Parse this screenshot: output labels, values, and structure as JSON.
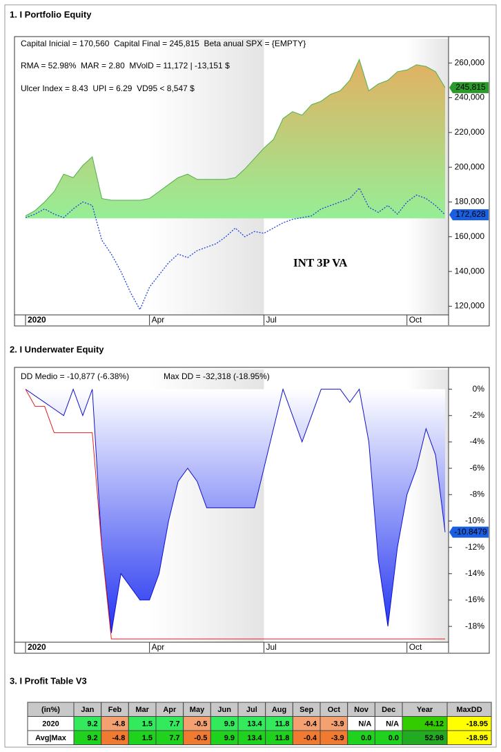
{
  "chart_data": [
    {
      "type": "area",
      "title": "1. I Portfolio Equity",
      "annotations": [
        "Capital Inicial = 170,560  Capital Final = 245,815  Beta anual SPX = {EMPTY}",
        "RMA = 52.98%  MAR = 2.80  MVolD = 11,172 | -13,151 $",
        "Ulcer Index = 8.43  UPI = 6.29  VD95 < 8,547 $",
        "INT 3P VA"
      ],
      "categories": [
        "2020",
        null,
        null,
        null,
        null,
        null,
        null,
        null,
        null,
        null,
        null,
        null,
        null,
        "Apr",
        null,
        null,
        null,
        null,
        null,
        null,
        null,
        null,
        null,
        null,
        null,
        "Jul",
        null,
        null,
        null,
        null,
        null,
        null,
        null,
        null,
        null,
        null,
        null,
        null,
        null,
        null,
        "Oct",
        null,
        null,
        null,
        null
      ],
      "baseline": 170560,
      "series": [
        {
          "color": "#4fae4f",
          "fill": [
            "#96ee96",
            "#eda85a"
          ],
          "label_color": "#2a9a2a",
          "label_text": "#000000",
          "values": [
            172000,
            175000,
            180000,
            186000,
            196000,
            194000,
            201000,
            206000,
            182000,
            181000,
            181000,
            181000,
            181000,
            182000,
            186000,
            190000,
            194000,
            196000,
            193000,
            193000,
            193000,
            193000,
            194000,
            199000,
            205000,
            211000,
            216000,
            228000,
            232000,
            230000,
            236000,
            238000,
            242000,
            244000,
            250000,
            262000,
            244000,
            248000,
            250000,
            255000,
            256000,
            259000,
            258000,
            255000,
            245815
          ],
          "value_labels": [
            null,
            null,
            null,
            null,
            null,
            null,
            null,
            null,
            null,
            null,
            null,
            null,
            null,
            null,
            null,
            null,
            null,
            null,
            null,
            null,
            null,
            null,
            null,
            null,
            null,
            null,
            null,
            null,
            null,
            null,
            null,
            null,
            null,
            null,
            null,
            null,
            null,
            null,
            null,
            null,
            null,
            null,
            null,
            null,
            "245,815"
          ]
        },
        {
          "color": "#1a3fe0",
          "style": "dotted",
          "label_color": "#1a5fe0",
          "label_text": "#ffffff",
          "values": [
            171000,
            173000,
            176000,
            173000,
            171000,
            176000,
            180000,
            178000,
            158000,
            150000,
            140000,
            128000,
            118000,
            131000,
            138000,
            145000,
            150000,
            148000,
            152000,
            154000,
            156000,
            160000,
            165000,
            160000,
            163000,
            162000,
            165000,
            168000,
            170000,
            171000,
            172000,
            176000,
            178000,
            180000,
            182000,
            188000,
            177000,
            174000,
            178000,
            173000,
            180000,
            184000,
            182000,
            178000,
            172628
          ],
          "value_labels": [
            null,
            null,
            null,
            null,
            null,
            null,
            null,
            null,
            null,
            null,
            null,
            null,
            null,
            null,
            null,
            null,
            null,
            null,
            null,
            null,
            null,
            null,
            null,
            null,
            null,
            null,
            null,
            null,
            null,
            null,
            null,
            null,
            null,
            null,
            null,
            null,
            null,
            null,
            null,
            null,
            null,
            null,
            null,
            null,
            "172,628"
          ]
        }
      ],
      "ylim": [
        115000,
        274000
      ],
      "yticks": [
        {
          "value": 120000,
          "label": "120,000"
        },
        {
          "value": 140000,
          "label": "140,000"
        },
        {
          "value": 160000,
          "label": "160,000"
        },
        {
          "value": 180000,
          "label": "180,000"
        },
        {
          "value": 200000,
          "label": "200,000"
        },
        {
          "value": 220000,
          "label": "220,000"
        },
        {
          "value": 240000,
          "label": "240,000"
        },
        {
          "value": 260000,
          "label": "260,000"
        }
      ]
    },
    {
      "type": "area",
      "title": "2. I Underwater Equity",
      "annotations": [
        "DD Medio = -10,877 (-6.38%)",
        "Max DD = -32,318 (-18.95%)"
      ],
      "categories": [
        "2020",
        null,
        null,
        null,
        null,
        null,
        null,
        null,
        null,
        null,
        null,
        null,
        null,
        "Apr",
        null,
        null,
        null,
        null,
        null,
        null,
        null,
        null,
        null,
        null,
        null,
        "Jul",
        null,
        null,
        null,
        null,
        null,
        null,
        null,
        null,
        null,
        null,
        null,
        null,
        null,
        null,
        "Oct",
        null,
        null,
        null,
        null
      ],
      "baseline": 0,
      "series": [
        {
          "color": "#1010cc",
          "fill": [
            "#ffffff",
            "#1a2cf0"
          ],
          "label_color": "#1a5fe0",
          "label_text": "#ffffff",
          "values": [
            0,
            -0.5,
            -1,
            -1.5,
            -2,
            0,
            -2,
            0,
            -12,
            -18.5,
            -14,
            -15,
            -16,
            -16,
            -14,
            -10,
            -7,
            -6,
            -7,
            -9,
            -9,
            -9,
            -9,
            -9,
            -9,
            -6,
            -3,
            0,
            -2,
            -4,
            -2,
            0,
            0,
            0,
            -1,
            0,
            -4,
            -13,
            -18,
            -12,
            -8,
            -6,
            -3,
            -5,
            -10.8479
          ],
          "value_labels": [
            null,
            null,
            null,
            null,
            null,
            null,
            null,
            null,
            null,
            null,
            null,
            null,
            null,
            null,
            null,
            null,
            null,
            null,
            null,
            null,
            null,
            null,
            null,
            null,
            null,
            null,
            null,
            null,
            null,
            null,
            null,
            null,
            null,
            null,
            null,
            null,
            null,
            null,
            null,
            null,
            null,
            null,
            null,
            null,
            "-10.8479"
          ]
        },
        {
          "color": "#e02020",
          "values": [
            0,
            -1.3,
            -1.3,
            -3.3,
            -3.3,
            -3.3,
            -3.3,
            -3.3,
            -12,
            -18.95,
            -18.95,
            -18.95,
            -18.95,
            -18.95,
            -18.95,
            -18.95,
            -18.95,
            -18.95,
            -18.95,
            -18.95,
            -18.95,
            -18.95,
            -18.95,
            -18.95,
            -18.95,
            -18.95,
            -18.95,
            -18.95,
            -18.95,
            -18.95,
            -18.95,
            -18.95,
            -18.95,
            -18.95,
            -18.95,
            -18.95,
            -18.95,
            -18.95,
            -18.95,
            -18.95,
            -18.95,
            -18.95,
            -18.95,
            -18.95,
            -18.95
          ]
        }
      ],
      "ylim": [
        -19.2,
        1.5
      ],
      "yticks": [
        {
          "value": -18,
          "label": "-18%"
        },
        {
          "value": -16,
          "label": "-16%"
        },
        {
          "value": -14,
          "label": "-14%"
        },
        {
          "value": -12,
          "label": "-12%"
        },
        {
          "value": -10,
          "label": "-10%"
        },
        {
          "value": -8,
          "label": "-8%"
        },
        {
          "value": -6,
          "label": "-6%"
        },
        {
          "value": -4,
          "label": "-4%"
        },
        {
          "value": -2,
          "label": "-2%"
        },
        {
          "value": 0,
          "label": "0%"
        }
      ]
    }
  ],
  "table": {
    "title": "3. I Profit Table V3",
    "header": [
      "(in%)",
      "Jan",
      "Feb",
      "Mar",
      "Apr",
      "May",
      "Jun",
      "Jul",
      "Aug",
      "Sep",
      "Oct",
      "Nov",
      "Dec",
      "Year",
      "MaxDD"
    ],
    "header_color": "#c8c8c8",
    "rows": [
      {
        "label": "2020",
        "bold": false,
        "cells": [
          "9.2",
          "-4.8",
          "1.5",
          "7.7",
          "-0.5",
          "9.9",
          "13.4",
          "11.8",
          "-0.4",
          "-3.9",
          "N/A",
          "N/A",
          "44.12",
          "-18.95"
        ],
        "colors": [
          "#33ea5c",
          "#f4a070",
          "#33ea5c",
          "#33ea5c",
          "#f4a070",
          "#33ea5c",
          "#33ea5c",
          "#33ea5c",
          "#f4a070",
          "#f4a070",
          "#ffffff",
          "#ffffff",
          "#33cc00",
          "#ffff00"
        ]
      },
      {
        "label": "Avg|Max",
        "bold": true,
        "cells": [
          "9.2",
          "-4.8",
          "1.5",
          "7.7",
          "-0.5",
          "9.9",
          "13.4",
          "11.8",
          "-0.4",
          "-3.9",
          "0.0",
          "0.0",
          "52.98",
          "-18.95"
        ],
        "colors": [
          "#1ed21e",
          "#f07a30",
          "#1ed21e",
          "#1ed21e",
          "#f07a30",
          "#1ed21e",
          "#1ed21e",
          "#1ed21e",
          "#f07a30",
          "#f07a30",
          "#1ed21e",
          "#1ed21e",
          "#22aa22",
          "#ffff00"
        ]
      }
    ]
  }
}
